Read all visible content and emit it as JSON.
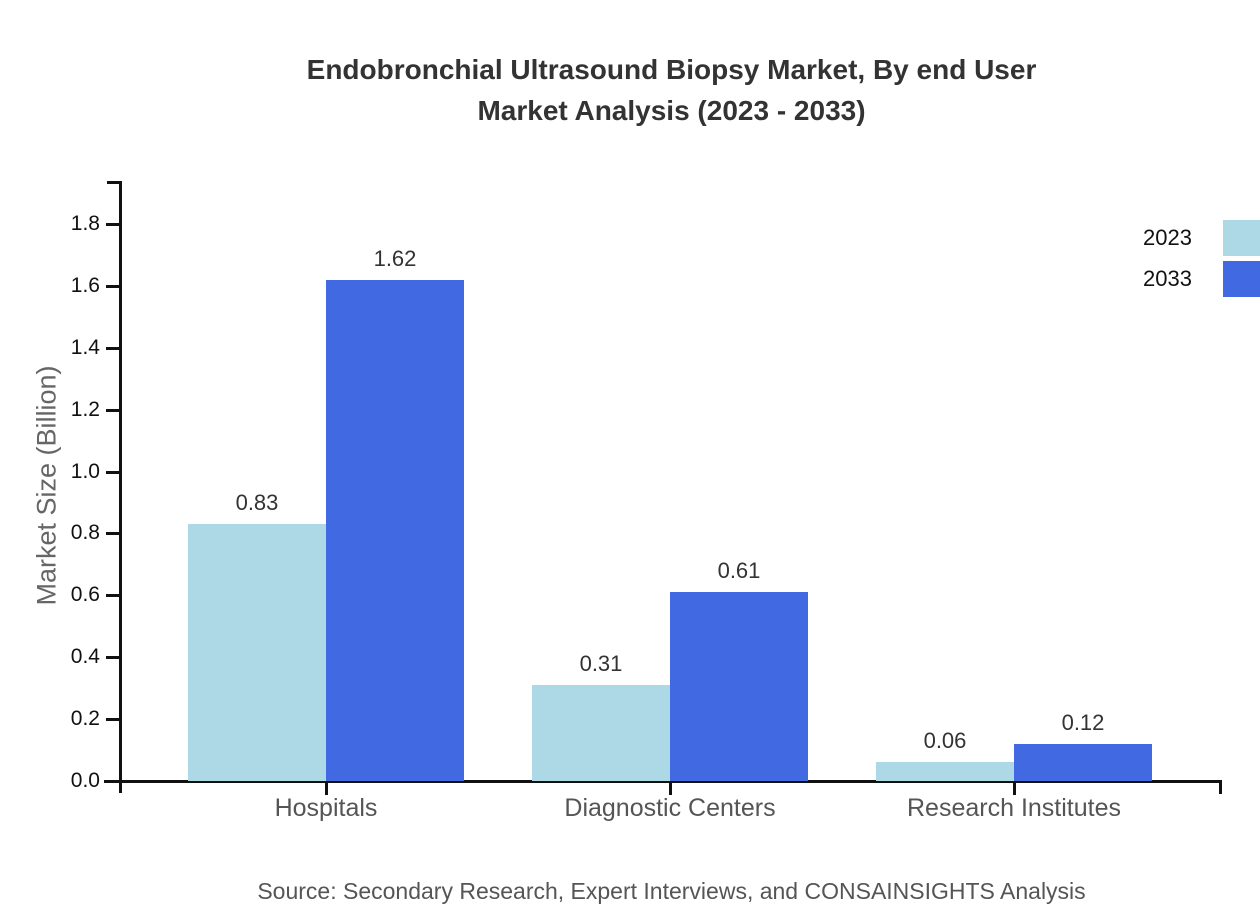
{
  "title": {
    "line1": "Endobronchial Ultrasound Biopsy Market, By end User",
    "line2": "Market Analysis (2023 - 2033)"
  },
  "chart_data": {
    "type": "bar",
    "categories": [
      "Hospitals",
      "Diagnostic Centers",
      "Research Institutes"
    ],
    "series": [
      {
        "name": "2023",
        "color": "#add8e6",
        "values": [
          0.83,
          0.31,
          0.06
        ]
      },
      {
        "name": "2033",
        "color": "#4169e1",
        "values": [
          1.62,
          0.61,
          0.12
        ]
      }
    ],
    "xlabel": "",
    "ylabel": "Market Size (Billion)",
    "ylim": [
      0.0,
      1.8
    ],
    "ytick_labels": [
      "0.0",
      "0.2",
      "0.4",
      "0.6",
      "0.8",
      "1.0",
      "1.2",
      "1.4",
      "1.6",
      "1.8"
    ],
    "grid": false,
    "legend_position": "top-right",
    "value_labels": [
      "0.83",
      "1.62",
      "0.31",
      "0.61",
      "0.06",
      "0.12"
    ]
  },
  "source_note": "Source: Secondary Research, Expert Interviews, and CONSAINSIGHTS Analysis",
  "colors": {
    "series_2023": "#add8e6",
    "series_2033": "#4169e1",
    "axis": "#111111",
    "title_text": "#333333",
    "muted_text": "#555555",
    "axis_title_text": "#666666"
  }
}
